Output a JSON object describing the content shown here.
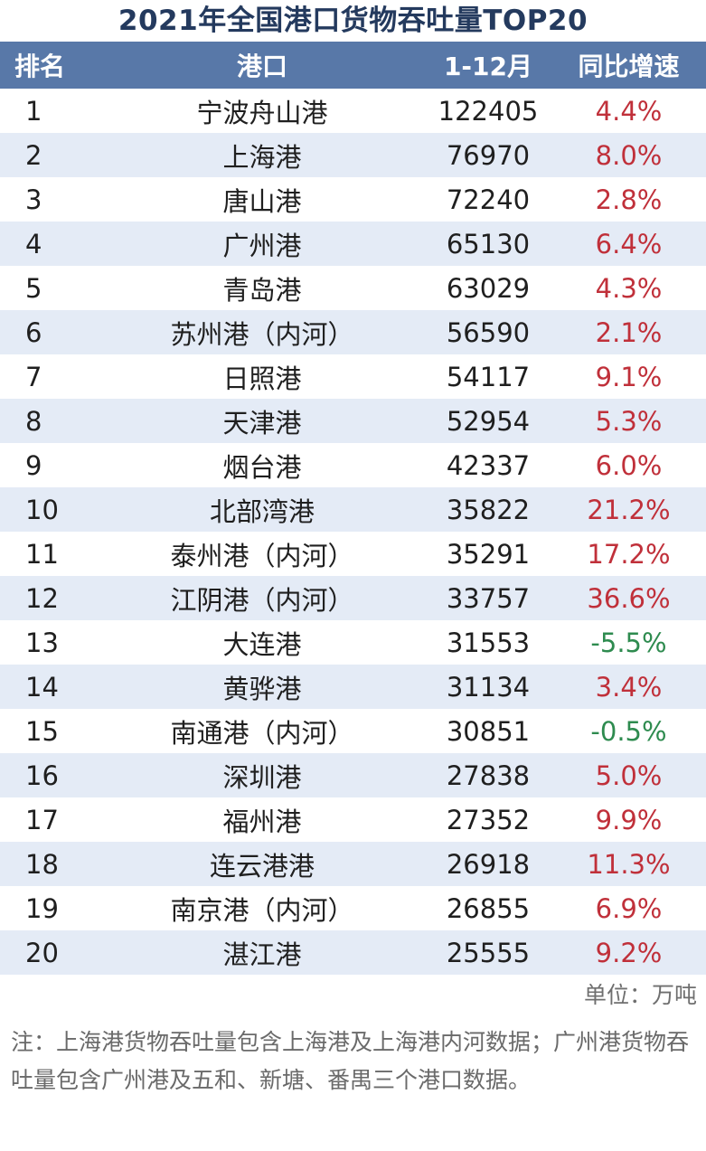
{
  "chart_data": {
    "type": "table",
    "title": "2021年全国港口货物吞吐量TOP20",
    "columns": [
      "排名",
      "港口",
      "1-12月",
      "同比增速"
    ],
    "rows": [
      {
        "rank": "1",
        "port": "宁波舟山港",
        "value": "122405",
        "growth": "4.4%"
      },
      {
        "rank": "2",
        "port": "上海港",
        "value": "76970",
        "growth": "8.0%"
      },
      {
        "rank": "3",
        "port": "唐山港",
        "value": "72240",
        "growth": "2.8%"
      },
      {
        "rank": "4",
        "port": "广州港",
        "value": "65130",
        "growth": "6.4%"
      },
      {
        "rank": "5",
        "port": "青岛港",
        "value": "63029",
        "growth": "4.3%"
      },
      {
        "rank": "6",
        "port": "苏州港（内河）",
        "value": "56590",
        "growth": "2.1%"
      },
      {
        "rank": "7",
        "port": "日照港",
        "value": "54117",
        "growth": "9.1%"
      },
      {
        "rank": "8",
        "port": "天津港",
        "value": "52954",
        "growth": "5.3%"
      },
      {
        "rank": "9",
        "port": "烟台港",
        "value": "42337",
        "growth": "6.0%"
      },
      {
        "rank": "10",
        "port": "北部湾港",
        "value": "35822",
        "growth": "21.2%"
      },
      {
        "rank": "11",
        "port": "泰州港（内河）",
        "value": "35291",
        "growth": "17.2%"
      },
      {
        "rank": "12",
        "port": "江阴港（内河）",
        "value": "33757",
        "growth": "36.6%"
      },
      {
        "rank": "13",
        "port": "大连港",
        "value": "31553",
        "growth": "-5.5%"
      },
      {
        "rank": "14",
        "port": "黄骅港",
        "value": "31134",
        "growth": "3.4%"
      },
      {
        "rank": "15",
        "port": "南通港（内河）",
        "value": "30851",
        "growth": "-0.5%"
      },
      {
        "rank": "16",
        "port": "深圳港",
        "value": "27838",
        "growth": "5.0%"
      },
      {
        "rank": "17",
        "port": "福州港",
        "value": "27352",
        "growth": "9.9%"
      },
      {
        "rank": "18",
        "port": "连云港港",
        "value": "26918",
        "growth": "11.3%"
      },
      {
        "rank": "19",
        "port": "南京港（内河）",
        "value": "26855",
        "growth": "6.9%"
      },
      {
        "rank": "20",
        "port": "湛江港",
        "value": "25555",
        "growth": "9.2%"
      }
    ],
    "unit": "单位：万吨",
    "note": "注：上海港货物吞吐量包含上海港及上海港内河数据；广州港货物吞吐量包含广州港及五和、新塘、番禺三个港口数据。"
  },
  "colors": {
    "header_bg": "#5878a8",
    "alt_row_bg": "#e4ebf6",
    "positive_growth": "#c0303a",
    "negative_growth": "#2e8b4f",
    "title": "#243a5e"
  }
}
